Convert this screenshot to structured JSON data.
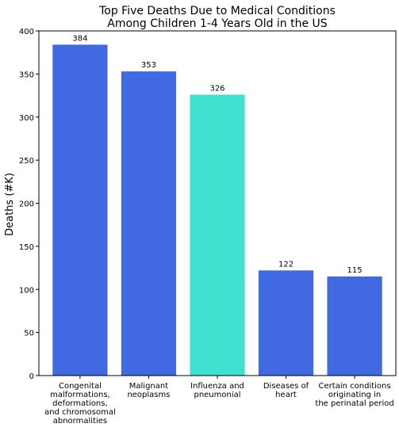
{
  "chart_data": {
    "type": "bar",
    "title_lines": [
      "Top Five Deaths Due to Medical Conditions",
      "Among Children 1-4 Years Old in the US"
    ],
    "xlabel": "",
    "ylabel": "Deaths (#K)",
    "ylim": [
      0,
      400
    ],
    "yticks": [
      0,
      50,
      100,
      150,
      200,
      250,
      300,
      350,
      400
    ],
    "grid": false,
    "categories": [
      [
        "Congenital",
        "malformations,",
        "deformations,",
        "and chromosomal",
        "abnormalities"
      ],
      [
        "Malignant",
        "neoplasms"
      ],
      [
        "Influenza and",
        "pneumonial"
      ],
      [
        "Diseases of",
        "heart"
      ],
      [
        "Certain conditions",
        "originating in",
        "the perinatal period"
      ]
    ],
    "values": [
      384,
      353,
      326,
      122,
      115
    ],
    "data_labels": [
      "384",
      "353",
      "326",
      "122",
      "115"
    ],
    "colors": [
      "#4169e1",
      "#4169e1",
      "#40e0d0",
      "#4169e1",
      "#4169e1"
    ]
  }
}
